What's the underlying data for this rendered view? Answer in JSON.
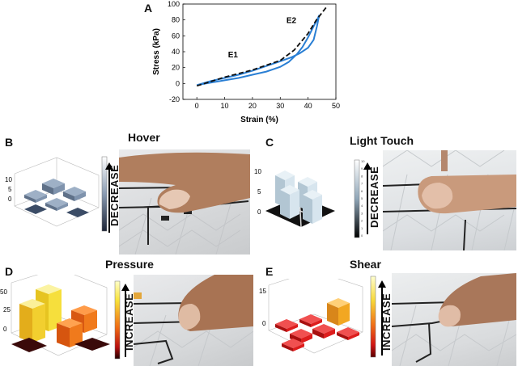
{
  "figure": {
    "panels": {
      "A": {
        "letter": "A"
      },
      "B": {
        "letter": "B",
        "title": "Hover",
        "scale_label": "DECREASE",
        "z_ticks": [
          "10",
          "5",
          "0"
        ]
      },
      "C": {
        "letter": "C",
        "title": "Light Touch",
        "scale_label": "DECREASE",
        "z_ticks": [
          "10",
          "5",
          "0"
        ],
        "colorbar_ticks": [
          "10",
          "9",
          "8",
          "7",
          "6",
          "5",
          "4",
          "3",
          "2",
          "1",
          "0"
        ]
      },
      "D": {
        "letter": "D",
        "title": "Pressure",
        "scale_label": "INCREASE",
        "z_ticks": [
          "50",
          "25",
          "0"
        ]
      },
      "E": {
        "letter": "E",
        "title": "Shear",
        "scale_label": "INCREASE",
        "z_ticks": [
          "15",
          "0"
        ]
      }
    },
    "colors": {
      "loading_curve": "#2a7fd4",
      "fit_line": "#111111",
      "hover_bars": "#7f93ad",
      "touch_bars": "#c9dbe6",
      "pressure_high": "#f3e23a",
      "pressure_mid": "#f07a1c",
      "shear_high": "#f2a722",
      "shear_low": "#dd1d1d",
      "base_dark": "#1a1a1a"
    }
  },
  "chart_data": {
    "type": "line",
    "xlabel": "Strain (%)",
    "ylabel": "Stress (kPa)",
    "xlim": [
      -5,
      50
    ],
    "ylim": [
      -20,
      100
    ],
    "xticks": [
      0,
      10,
      20,
      30,
      40,
      50
    ],
    "yticks": [
      -20,
      0,
      20,
      40,
      60,
      80,
      100
    ],
    "annotations": [
      {
        "text": "E1",
        "x": 13,
        "y": 33
      },
      {
        "text": "E2",
        "x": 34,
        "y": 76
      }
    ],
    "series": [
      {
        "style": "solid",
        "x": [
          0,
          5,
          10,
          15,
          20,
          25,
          30,
          33,
          36,
          38,
          40,
          42,
          43.5,
          44,
          43.2,
          42,
          40,
          37,
          34,
          30,
          25,
          20,
          15,
          10,
          5,
          0
        ],
        "y": [
          -2,
          1,
          4,
          7,
          11,
          15,
          21,
          27,
          37,
          46,
          58,
          72,
          82,
          86,
          72,
          55,
          45,
          38,
          33,
          28,
          22,
          16,
          11,
          7,
          3,
          -2
        ]
      },
      {
        "style": "dashed",
        "x": [
          0,
          10,
          20,
          30,
          35,
          40,
          43,
          47
        ],
        "y": [
          -3,
          8,
          17,
          29,
          42,
          63,
          80,
          98
        ]
      }
    ]
  }
}
